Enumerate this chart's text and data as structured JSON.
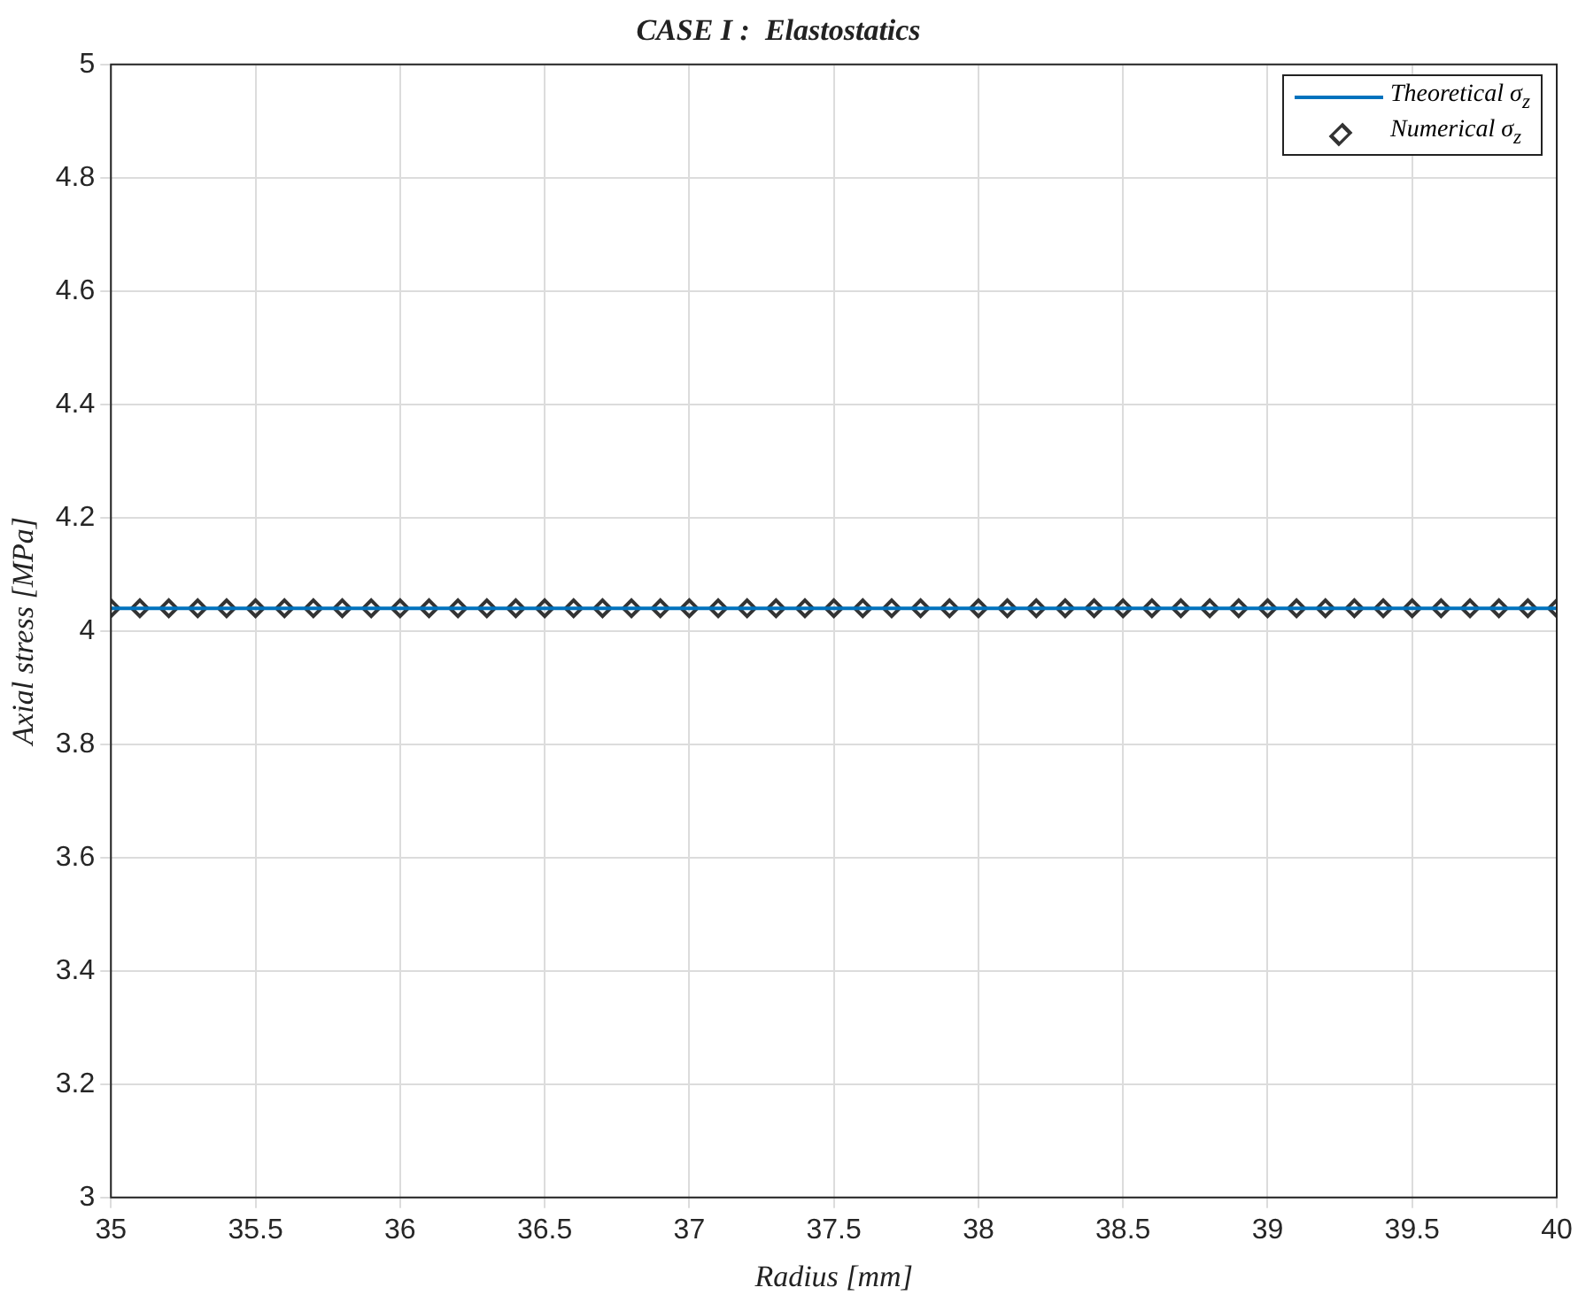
{
  "chart_data": {
    "type": "line",
    "title": "CASE I :  Elastostatics",
    "xlabel": "Radius [mm]",
    "ylabel": "Axial stress [MPa]",
    "xlim": [
      35,
      40
    ],
    "xticks": [
      35,
      35.5,
      36,
      36.5,
      37,
      37.5,
      38,
      38.5,
      39,
      39.5,
      40
    ],
    "ylim": [
      3,
      5
    ],
    "yticks": [
      3,
      3.2,
      3.4,
      3.6,
      3.8,
      4,
      4.2,
      4.4,
      4.6,
      4.8,
      5
    ],
    "grid": true,
    "legend": "top right",
    "series": [
      {
        "name": "Theoretical σ$_{z}$",
        "type": "line",
        "color": "#0072bd",
        "marker": "none",
        "line_style": "solid",
        "x": [
          35,
          40
        ],
        "values": [
          4.04,
          4.04
        ]
      },
      {
        "name": "Numerical σ$_{z}$",
        "type": "scatter",
        "color": "#333333",
        "marker": "diamond",
        "x": [
          35,
          35.1,
          35.2,
          35.3,
          35.4,
          35.5,
          35.6,
          35.7,
          35.8,
          35.9,
          36,
          36.1,
          36.2,
          36.3,
          36.4,
          36.5,
          36.6,
          36.7,
          36.8,
          36.9,
          37,
          37.1,
          37.2,
          37.3,
          37.4,
          37.5,
          37.6,
          37.7,
          37.8,
          37.9,
          38,
          38.1,
          38.2,
          38.3,
          38.4,
          38.5,
          38.6,
          38.7,
          38.8,
          38.9,
          39,
          39.1,
          39.2,
          39.3,
          39.4,
          39.5,
          39.6,
          39.7,
          39.8,
          39.9,
          40
        ],
        "values": [
          4.04,
          4.04,
          4.04,
          4.04,
          4.04,
          4.04,
          4.04,
          4.04,
          4.04,
          4.04,
          4.04,
          4.04,
          4.04,
          4.04,
          4.04,
          4.04,
          4.04,
          4.04,
          4.04,
          4.04,
          4.04,
          4.04,
          4.04,
          4.04,
          4.04,
          4.04,
          4.04,
          4.04,
          4.04,
          4.04,
          4.04,
          4.04,
          4.04,
          4.04,
          4.04,
          4.04,
          4.04,
          4.04,
          4.04,
          4.04,
          4.04,
          4.04,
          4.04,
          4.04,
          4.04,
          4.04,
          4.04,
          4.04,
          4.04,
          4.04,
          4.04
        ]
      }
    ]
  }
}
